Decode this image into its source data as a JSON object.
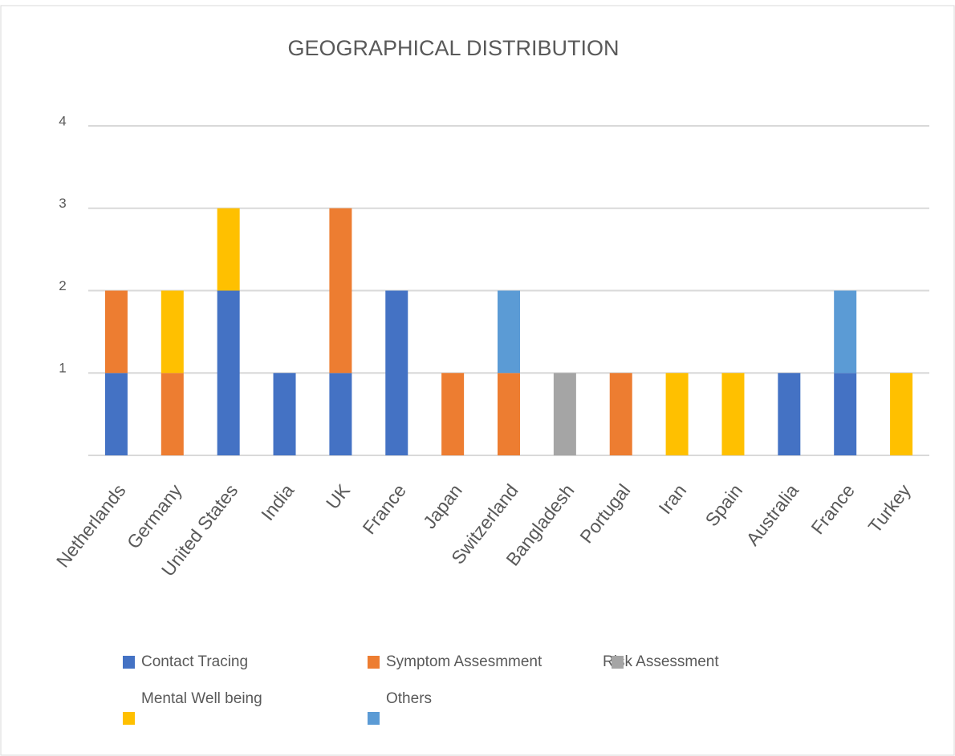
{
  "chart_data": {
    "type": "stacked_bar",
    "title": "GEOGRAPHICAL DISTRIBUTION",
    "categories": [
      "Netherlands",
      "Germany",
      "United States",
      "India",
      "UK",
      "France",
      "Japan",
      "Switzerland",
      "Bangladesh",
      "Portugal",
      "Iran",
      "Spain",
      "Australia",
      "France",
      "Turkey"
    ],
    "series": [
      {
        "name": "Contact Tracing",
        "color": "#4472c4",
        "values": [
          1,
          0,
          2,
          1,
          1,
          2,
          0,
          0,
          0,
          0,
          0,
          0,
          1,
          1,
          0
        ]
      },
      {
        "name": "Symptom Assesmment",
        "color": "#ed7d31",
        "values": [
          1,
          1,
          0,
          0,
          2,
          0,
          1,
          1,
          0,
          1,
          0,
          0,
          0,
          0,
          0
        ]
      },
      {
        "name": "Risk Assessment",
        "color": "#a5a5a5",
        "values": [
          0,
          0,
          0,
          0,
          0,
          0,
          0,
          0,
          1,
          0,
          0,
          0,
          0,
          0,
          0
        ]
      },
      {
        "name": "Mental Well being",
        "color": "#ffc000",
        "values": [
          0,
          1,
          1,
          0,
          0,
          0,
          0,
          0,
          0,
          0,
          1,
          1,
          0,
          0,
          1
        ]
      },
      {
        "name": "Others",
        "color": "#5b9bd5",
        "values": [
          0,
          0,
          0,
          0,
          0,
          0,
          0,
          1,
          0,
          0,
          0,
          0,
          0,
          1,
          0
        ]
      }
    ],
    "ylim": [
      0,
      4
    ],
    "yticks": [
      1,
      2,
      3,
      4
    ],
    "grid": true,
    "legend": "bottom"
  }
}
